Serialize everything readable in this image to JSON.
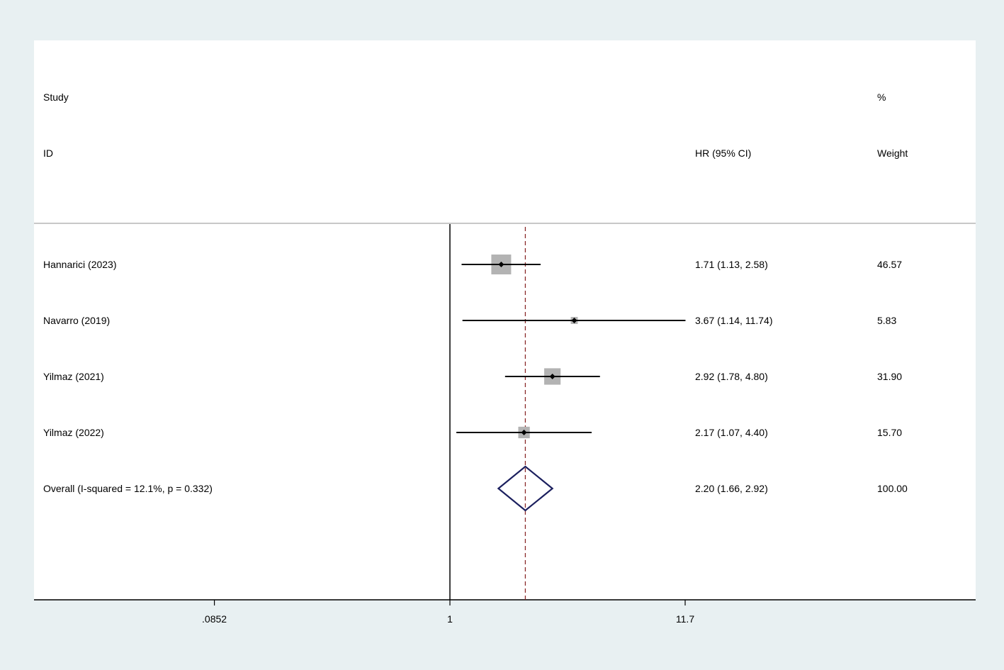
{
  "chart_data": {
    "type": "forest",
    "x_scale": "log",
    "effect_measure": "HR",
    "headers": {
      "study_line1": "Study",
      "study_line2": "ID",
      "effect_line2": "HR (95% CI)",
      "weight_line1": "%",
      "weight_line2": "Weight"
    },
    "studies": [
      {
        "label": "Hannarici (2023)",
        "hr": 1.71,
        "lo": 1.13,
        "hi": 2.58,
        "ci_text": "1.71 (1.13, 2.58)",
        "weight": 46.57,
        "weight_text": "46.57"
      },
      {
        "label": "Navarro (2019)",
        "hr": 3.67,
        "lo": 1.14,
        "hi": 11.74,
        "ci_text": "3.67 (1.14, 11.74)",
        "weight": 5.83,
        "weight_text": "5.83"
      },
      {
        "label": "Yilmaz (2021)",
        "hr": 2.92,
        "lo": 1.78,
        "hi": 4.8,
        "ci_text": "2.92 (1.78, 4.80)",
        "weight": 31.9,
        "weight_text": "31.90"
      },
      {
        "label": "Yilmaz (2022)",
        "hr": 2.17,
        "lo": 1.07,
        "hi": 4.4,
        "ci_text": "2.17 (1.07, 4.40)",
        "weight": 15.7,
        "weight_text": "15.70"
      }
    ],
    "overall": {
      "label": "Overall  (I-squared = 12.1%, p = 0.332)",
      "hr": 2.2,
      "lo": 1.66,
      "hi": 2.92,
      "ci_text": "2.20 (1.66, 2.92)",
      "weight_text": "100.00"
    },
    "null_value": 1,
    "xlim": [
      0.0852,
      11.7
    ],
    "ticks": [
      {
        "value": 0.0852,
        "label": ".0852"
      },
      {
        "value": 1,
        "label": "1"
      },
      {
        "value": 11.7,
        "label": "11.7"
      }
    ],
    "colors": {
      "page_bg": "#e8f0f2",
      "plot_bg": "#ffffff",
      "box": "#b3b3b3",
      "diamond": "#1b1f5e",
      "ref_line": "#8b2b2b",
      "ci_line": "#000000"
    }
  }
}
